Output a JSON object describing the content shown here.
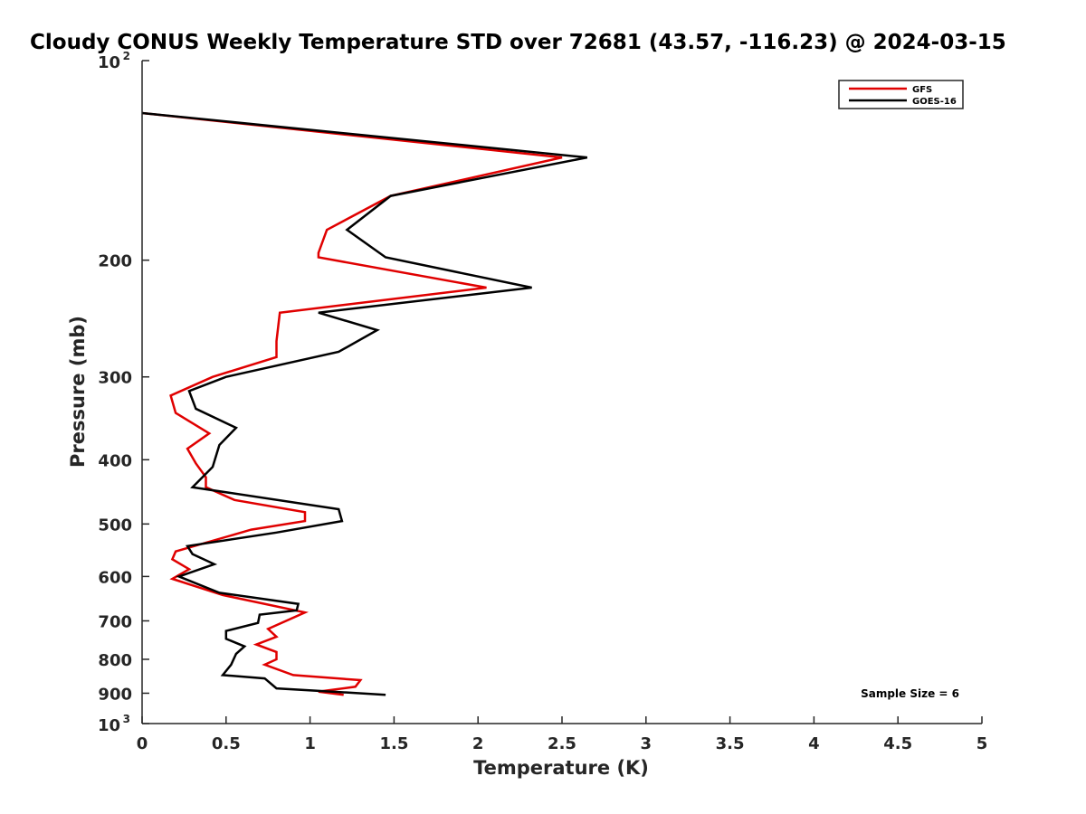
{
  "chart_data": {
    "type": "line",
    "title": "Cloudy CONUS Weekly Temperature STD over 72681 (43.57, -116.23) @ 2024-03-15",
    "xlabel": "Temperature (K)",
    "ylabel": "Pressure (mb)",
    "xlim": [
      0,
      5
    ],
    "ylim": [
      100,
      1000
    ],
    "y_scale": "log",
    "y_reversed": true,
    "grid": false,
    "legend_position": "top-right",
    "x_ticks": [
      "0",
      "0.5",
      "1",
      "1.5",
      "2",
      "2.5",
      "3",
      "3.5",
      "4",
      "4.5",
      "5"
    ],
    "y_ticks": [
      {
        "value": 100,
        "base": "10",
        "exp": "2",
        "label": ""
      },
      {
        "value": 200,
        "base": "",
        "exp": "",
        "label": "200"
      },
      {
        "value": 300,
        "base": "",
        "exp": "",
        "label": "300"
      },
      {
        "value": 400,
        "base": "",
        "exp": "",
        "label": "400"
      },
      {
        "value": 500,
        "base": "",
        "exp": "",
        "label": "500"
      },
      {
        "value": 600,
        "base": "",
        "exp": "",
        "label": "600"
      },
      {
        "value": 700,
        "base": "",
        "exp": "",
        "label": "700"
      },
      {
        "value": 800,
        "base": "",
        "exp": "",
        "label": "800"
      },
      {
        "value": 900,
        "base": "",
        "exp": "",
        "label": "900"
      },
      {
        "value": 1000,
        "base": "10",
        "exp": "3",
        "label": ""
      }
    ],
    "annotation": "Sample Size = 6",
    "series": [
      {
        "name": "GFS",
        "color": "#e00000",
        "points": [
          [
            0.0,
            120
          ],
          [
            2.5,
            140
          ],
          [
            1.48,
            160
          ],
          [
            1.1,
            180
          ],
          [
            1.05,
            195
          ],
          [
            1.05,
            198
          ],
          [
            2.05,
            220
          ],
          [
            0.82,
            240
          ],
          [
            0.8,
            265
          ],
          [
            0.8,
            280
          ],
          [
            0.42,
            300
          ],
          [
            0.17,
            320
          ],
          [
            0.2,
            340
          ],
          [
            0.4,
            365
          ],
          [
            0.27,
            385
          ],
          [
            0.32,
            405
          ],
          [
            0.38,
            425
          ],
          [
            0.38,
            440
          ],
          [
            0.55,
            460
          ],
          [
            0.97,
            480
          ],
          [
            0.97,
            495
          ],
          [
            0.65,
            510
          ],
          [
            0.2,
            550
          ],
          [
            0.18,
            565
          ],
          [
            0.28,
            585
          ],
          [
            0.18,
            605
          ],
          [
            0.48,
            640
          ],
          [
            0.97,
            680
          ],
          [
            0.75,
            720
          ],
          [
            0.8,
            740
          ],
          [
            0.68,
            760
          ],
          [
            0.8,
            780
          ],
          [
            0.8,
            800
          ],
          [
            0.73,
            815
          ],
          [
            0.9,
            845
          ],
          [
            1.3,
            860
          ],
          [
            1.27,
            880
          ],
          [
            1.05,
            895
          ],
          [
            1.2,
            905
          ]
        ]
      },
      {
        "name": "GOES-16",
        "color": "#000000",
        "points": [
          [
            0.0,
            120
          ],
          [
            2.65,
            140
          ],
          [
            1.48,
            160
          ],
          [
            1.22,
            180
          ],
          [
            1.45,
            198
          ],
          [
            2.32,
            220
          ],
          [
            1.05,
            240
          ],
          [
            1.4,
            255
          ],
          [
            1.17,
            275
          ],
          [
            0.5,
            300
          ],
          [
            0.28,
            315
          ],
          [
            0.32,
            335
          ],
          [
            0.56,
            358
          ],
          [
            0.46,
            380
          ],
          [
            0.42,
            410
          ],
          [
            0.3,
            440
          ],
          [
            1.17,
            475
          ],
          [
            1.19,
            495
          ],
          [
            0.8,
            515
          ],
          [
            0.27,
            540
          ],
          [
            0.3,
            555
          ],
          [
            0.43,
            575
          ],
          [
            0.22,
            600
          ],
          [
            0.46,
            635
          ],
          [
            0.93,
            660
          ],
          [
            0.92,
            675
          ],
          [
            0.7,
            685
          ],
          [
            0.69,
            705
          ],
          [
            0.5,
            725
          ],
          [
            0.5,
            745
          ],
          [
            0.61,
            765
          ],
          [
            0.56,
            785
          ],
          [
            0.53,
            815
          ],
          [
            0.48,
            845
          ],
          [
            0.73,
            855
          ],
          [
            0.8,
            885
          ],
          [
            1.45,
            905
          ]
        ]
      }
    ]
  }
}
